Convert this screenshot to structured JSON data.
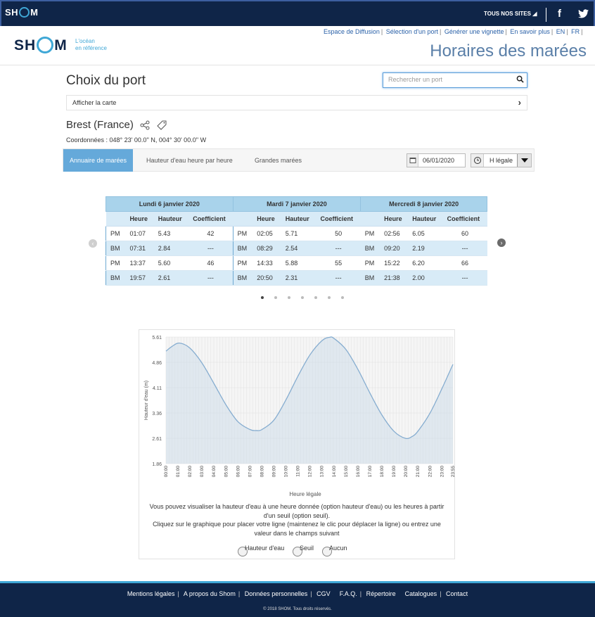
{
  "topbar": {
    "logo_left": "SH",
    "logo_right": "M",
    "sites_label": "TOUS NOS SITES",
    "facebook": "f"
  },
  "header": {
    "logo_left": "SH",
    "logo_right": "M",
    "tagline_1": "L'océan",
    "tagline_2": "en référence",
    "links": [
      "Espace de Diffusion",
      "Sélection d'un port",
      "Générer une vignette",
      "En savoir plus",
      "EN",
      "FR"
    ],
    "page_title": "Horaires des marées"
  },
  "main": {
    "choose_title": "Choix du port",
    "search_placeholder": "Rechercher un port",
    "map_toggle": "Afficher la carte",
    "port_name": "Brest (France)",
    "coordinates": "Coordonnées : 048° 23' 00.0'' N, 004° 30' 00.0'' W",
    "tabs": [
      "Annuaire de marées",
      "Hauteur d'eau heure par heure",
      "Grandes marées"
    ],
    "date": "06/01/2020",
    "hour_mode": "H légale"
  },
  "tide_table": {
    "days": [
      "Lundi 6 janvier 2020",
      "Mardi 7 janvier 2020",
      "Mercredi 8 janvier 2020"
    ],
    "columns": [
      "Heure",
      "Hauteur",
      "Coefficient"
    ],
    "rows": [
      [
        [
          "PM",
          "01:07",
          "5.43",
          "42"
        ],
        [
          "PM",
          "02:05",
          "5.71",
          "50"
        ],
        [
          "PM",
          "02:56",
          "6.05",
          "60"
        ]
      ],
      [
        [
          "BM",
          "07:31",
          "2.84",
          "---"
        ],
        [
          "BM",
          "08:29",
          "2.54",
          "---"
        ],
        [
          "BM",
          "09:20",
          "2.19",
          "---"
        ]
      ],
      [
        [
          "PM",
          "13:37",
          "5.60",
          "46"
        ],
        [
          "PM",
          "14:33",
          "5.88",
          "55"
        ],
        [
          "PM",
          "15:22",
          "6.20",
          "66"
        ]
      ],
      [
        [
          "BM",
          "19:57",
          "2.61",
          "---"
        ],
        [
          "BM",
          "20:50",
          "2.31",
          "---"
        ],
        [
          "BM",
          "21:38",
          "2.00",
          "---"
        ]
      ]
    ]
  },
  "chart_data": {
    "type": "area",
    "xlabel": "Heure légale",
    "ylabel": "Hauteur d'eau (m)",
    "yticks": [
      "1.86",
      "2.61",
      "3.36",
      "4.11",
      "4.86",
      "5.61"
    ],
    "ylim": [
      1.86,
      5.61
    ],
    "xticks": [
      "00:00",
      "01:00",
      "02:00",
      "03:00",
      "04:00",
      "05:00",
      "06:00",
      "07:00",
      "08:00",
      "09:00",
      "10:00",
      "11:00",
      "12:00",
      "13:00",
      "14:00",
      "15:00",
      "16:00",
      "17:00",
      "18:00",
      "19:00",
      "20:00",
      "21:00",
      "22:00",
      "23:00",
      "23:55"
    ],
    "x": [
      0,
      0.5,
      1.12,
      2,
      3,
      4,
      5,
      6,
      7,
      7.52,
      8,
      9,
      10,
      11,
      12,
      13,
      13.62,
      14,
      15,
      16,
      17,
      18,
      19,
      19.95,
      20.5,
      21,
      22,
      23,
      23.92
    ],
    "y": [
      5.19,
      5.33,
      5.43,
      5.28,
      4.84,
      4.23,
      3.6,
      3.1,
      2.87,
      2.84,
      2.87,
      3.15,
      3.75,
      4.45,
      5.08,
      5.5,
      5.6,
      5.57,
      5.24,
      4.65,
      3.95,
      3.3,
      2.82,
      2.61,
      2.66,
      2.82,
      3.35,
      4.08,
      4.8
    ],
    "grid": true
  },
  "chart_info": {
    "line1": "Vous pouvez visualiser la hauteur d'eau à une heure donnée (option hauteur d'eau) ou les heures à partir",
    "line2": "d'un seuil (option seuil).",
    "line3": "Cliquez sur le graphique pour placer votre ligne (maintenez le clic pour déplacer la ligne) ou entrez une",
    "line4": "valeur dans le champs suivant",
    "options": [
      "Hauteur d'eau",
      "Seuil",
      "Aucun"
    ]
  },
  "footer": {
    "links": [
      "Mentions légales",
      "A propos du Shom",
      "Données personnelles",
      "CGV",
      "F.A.Q.",
      "Répertoire",
      "Catalogues",
      "Contact"
    ],
    "copyright": "© 2018 SHOM. Tous droits réservés."
  },
  "colors": {
    "navy": "#0f2548",
    "accent": "#3fa7d6",
    "tab_active": "#65a9da",
    "table_header": "#a9d3eb"
  }
}
